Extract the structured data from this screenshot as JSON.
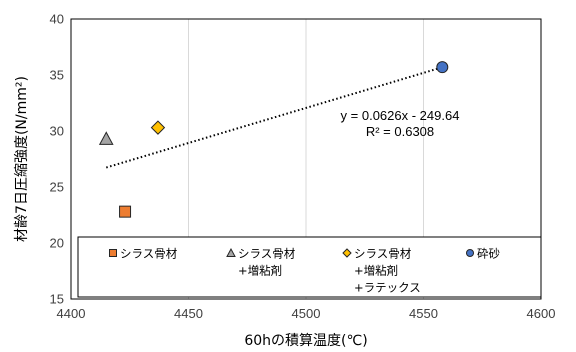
{
  "chart_data": {
    "type": "scatter",
    "xlabel": "60hの積算温度(℃)",
    "ylabel": "材齢7日圧縮強度(N/mm²)",
    "xlim": [
      4400,
      4600
    ],
    "ylim": [
      15,
      40
    ],
    "xticks": [
      4400,
      4450,
      4500,
      4550,
      4600
    ],
    "yticks": [
      15,
      20,
      25,
      30,
      35,
      40
    ],
    "grid": "vertical",
    "legend_position": "bottom-inside",
    "series": [
      {
        "name": "シラス骨材",
        "lines": [
          "シラス骨材"
        ],
        "marker": "square",
        "color": "#ED7D31",
        "x": 4423,
        "y": 22.8
      },
      {
        "name": "シラス骨材+増粘剤",
        "lines": [
          "シラス骨材",
          "+増粘剤"
        ],
        "marker": "triangle",
        "color": "#A5A5A5",
        "x": 4415,
        "y": 29.3
      },
      {
        "name": "シラス骨材+増粘剤+ラテックス",
        "lines": [
          "シラス骨材",
          "+増粘剤",
          "+ラテックス"
        ],
        "marker": "diamond",
        "color": "#FFC000",
        "x": 4437,
        "y": 30.3
      },
      {
        "name": "砕砂",
        "lines": [
          "砕砂"
        ],
        "marker": "circle",
        "color": "#4472C4",
        "x": 4558,
        "y": 35.7
      }
    ],
    "trendline": {
      "type": "linear",
      "slope": 0.0626,
      "intercept": -249.64,
      "x_range": [
        4415,
        4558
      ],
      "equation": "y = 0.0626x - 249.64",
      "r_squared": "R² = 0.6308"
    }
  }
}
